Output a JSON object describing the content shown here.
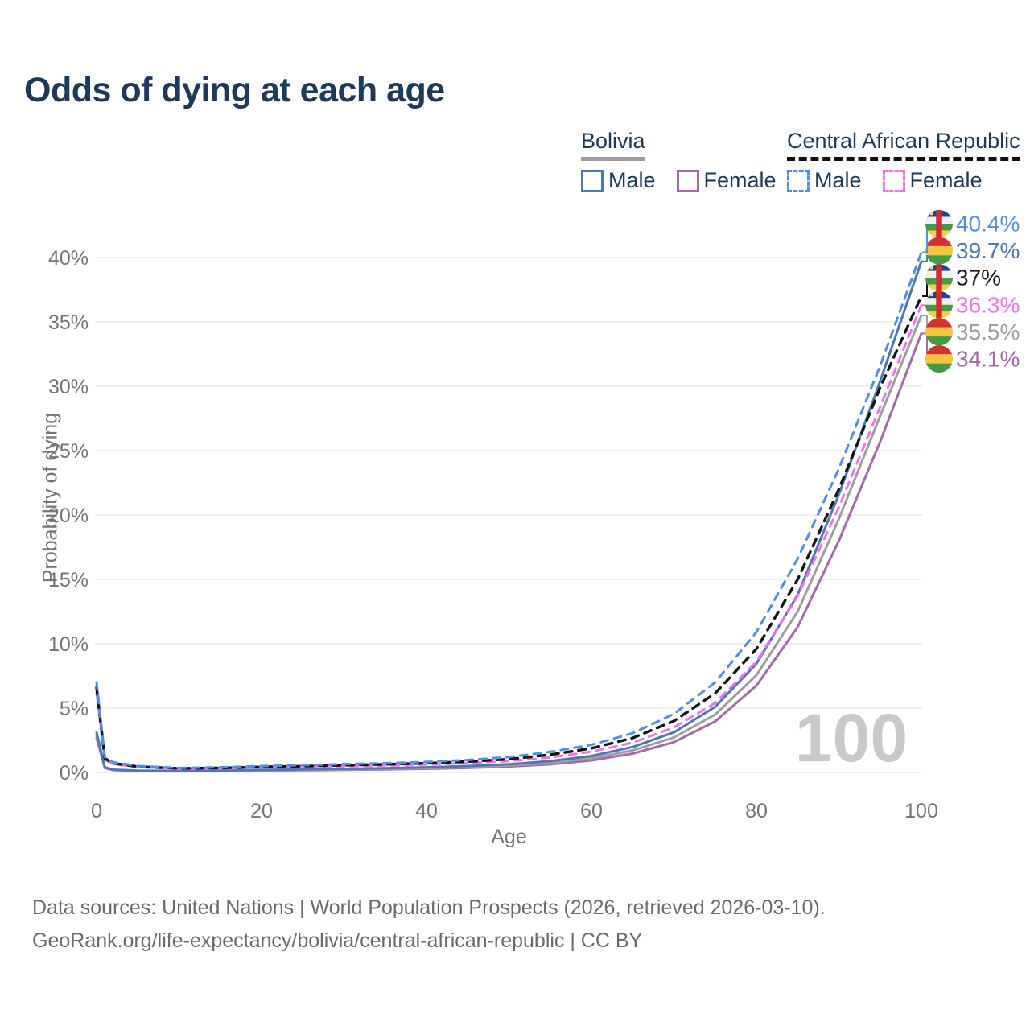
{
  "title": "Odds of dying at each age",
  "legend": {
    "groups": [
      {
        "name": "Bolivia",
        "underline_style": "solid",
        "underline_color": "#9e9e9e",
        "items": [
          {
            "label": "Male",
            "color": "#4a79b8",
            "dashed": false
          },
          {
            "label": "Female",
            "color": "#a869ab",
            "dashed": false
          }
        ]
      },
      {
        "name": "Central African Republic",
        "underline_style": "dashed",
        "underline_color": "#111111",
        "items": [
          {
            "label": "Male",
            "color": "#4d8ef0",
            "dashed": true
          },
          {
            "label": "Female",
            "color": "#f96ef0",
            "dashed": true
          }
        ]
      }
    ]
  },
  "axes": {
    "y_label": "Probability of dying",
    "x_label": "Age",
    "y_ticks": [
      "0%",
      "5%",
      "10%",
      "15%",
      "20%",
      "25%",
      "30%",
      "35%",
      "40%"
    ],
    "x_ticks": [
      0,
      20,
      40,
      60,
      80,
      100
    ]
  },
  "watermark": "100",
  "footer": {
    "line1": "Data sources: United Nations | World Population Prospects (2026, retrieved 2026-03-10).",
    "line2": "GeoRank.org/life-expectancy/bolivia/central-african-republic | CC BY"
  },
  "flag_colors": {
    "bolivia": {
      "red": "#d2332e",
      "yellow": "#f4c53d",
      "green": "#459b45"
    },
    "car": {
      "blue": "#27408f",
      "white": "#f0f0f0",
      "green": "#459b45",
      "yellow": "#f7cf46",
      "red": "#d32b33",
      "star": "#ffd83d"
    }
  },
  "chart_data": {
    "type": "line",
    "title": "Odds of dying at each age",
    "xlabel": "Age",
    "ylabel": "Probability of dying",
    "xlim": [
      0,
      100
    ],
    "ylim": [
      0,
      42
    ],
    "grid": true,
    "y_tick_step_percent": 5,
    "x": [
      0,
      1,
      2,
      5,
      10,
      15,
      20,
      25,
      30,
      35,
      40,
      45,
      50,
      55,
      60,
      65,
      70,
      75,
      80,
      85,
      90,
      95,
      100
    ],
    "series": [
      {
        "id": "bolivia-female",
        "name": "Bolivia Female",
        "country": "bolivia",
        "sex": "female",
        "color": "#a869ab",
        "dashed": false,
        "end_value_percent": 34.1,
        "end_label": "34.1%",
        "label_color": "#a869ab",
        "values": [
          2.7,
          0.34,
          0.18,
          0.12,
          0.09,
          0.11,
          0.14,
          0.17,
          0.2,
          0.24,
          0.28,
          0.35,
          0.46,
          0.63,
          0.94,
          1.47,
          2.36,
          3.97,
          6.75,
          11.3,
          18.0,
          25.7,
          34.1
        ]
      },
      {
        "id": "bolivia-all",
        "name": "Bolivia Both sexes",
        "country": "bolivia",
        "sex": "all",
        "color": "#9e9e9e",
        "dashed": false,
        "end_value_percent": 35.5,
        "end_label": "35.5%",
        "label_color": "#9e9e9e",
        "values": [
          2.9,
          0.37,
          0.2,
          0.13,
          0.1,
          0.13,
          0.17,
          0.2,
          0.24,
          0.28,
          0.34,
          0.42,
          0.54,
          0.75,
          1.1,
          1.72,
          2.72,
          4.5,
          7.55,
          12.5,
          19.7,
          27.7,
          35.5
        ]
      },
      {
        "id": "bolivia-male",
        "name": "Bolivia Male",
        "country": "bolivia",
        "sex": "male",
        "color": "#4a79b8",
        "dashed": false,
        "end_value_percent": 39.7,
        "end_label": "39.7%",
        "label_color": "#4a79b8",
        "values": [
          3.1,
          0.4,
          0.22,
          0.14,
          0.11,
          0.15,
          0.2,
          0.24,
          0.28,
          0.33,
          0.4,
          0.5,
          0.64,
          0.88,
          1.28,
          1.98,
          3.12,
          5.1,
          8.45,
          13.8,
          21.6,
          30.4,
          39.7
        ]
      },
      {
        "id": "car-female",
        "name": "Central African Republic Female",
        "country": "car",
        "sex": "female",
        "color": "#f96ef0",
        "dashed": true,
        "end_value_percent": 36.3,
        "end_label": "36.3%",
        "label_color": "#f96ef0",
        "values": [
          6.2,
          1.0,
          0.65,
          0.41,
          0.28,
          0.31,
          0.37,
          0.42,
          0.47,
          0.53,
          0.61,
          0.73,
          0.88,
          1.17,
          1.62,
          2.32,
          3.5,
          5.4,
          8.6,
          13.7,
          20.6,
          28.4,
          36.3
        ]
      },
      {
        "id": "car-all",
        "name": "Central African Republic Both sexes",
        "country": "car",
        "sex": "all",
        "color": "#151515",
        "dashed": true,
        "end_value_percent": 37,
        "end_label": "37%",
        "label_color": "#1a1a1a",
        "values": [
          6.6,
          1.1,
          0.72,
          0.45,
          0.31,
          0.35,
          0.43,
          0.49,
          0.56,
          0.63,
          0.72,
          0.85,
          1.03,
          1.38,
          1.88,
          2.68,
          4.0,
          6.15,
          9.6,
          15.0,
          22.0,
          29.9,
          37.0
        ]
      },
      {
        "id": "car-male",
        "name": "Central African Republic Male",
        "country": "car",
        "sex": "male",
        "color": "#4d8ef0",
        "dashed": true,
        "end_value_percent": 40.4,
        "end_label": "40.4%",
        "label_color": "#4d8ef0",
        "values": [
          7.0,
          1.2,
          0.8,
          0.5,
          0.35,
          0.4,
          0.5,
          0.57,
          0.65,
          0.72,
          0.82,
          0.97,
          1.2,
          1.6,
          2.15,
          3.05,
          4.55,
          7.0,
          10.9,
          16.6,
          23.6,
          31.6,
          40.4
        ]
      }
    ],
    "end_label_order_top_to_bottom": [
      "car-male",
      "bolivia-male",
      "car-all",
      "car-female",
      "bolivia-all",
      "bolivia-female"
    ]
  }
}
